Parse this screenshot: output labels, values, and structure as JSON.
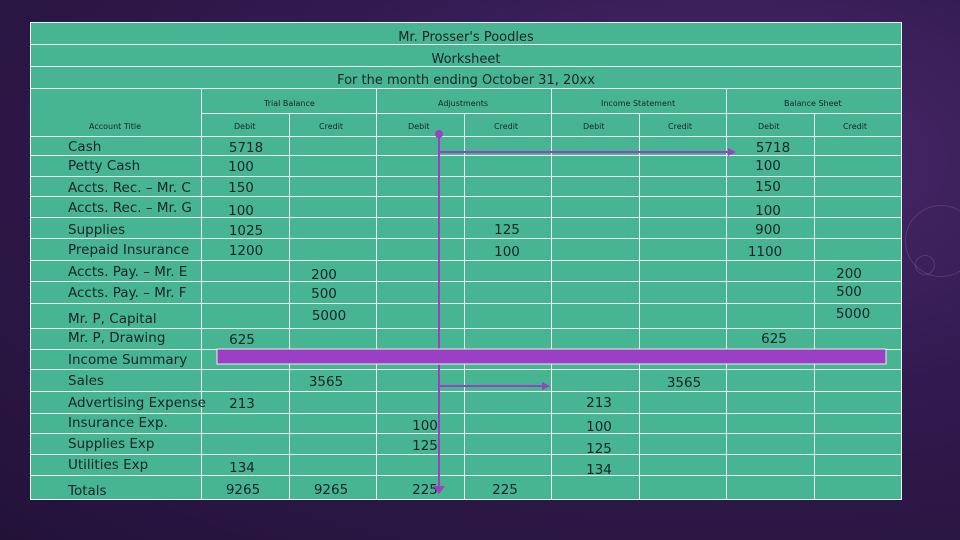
{
  "header": {
    "line1": "Mr. Prosser's Poodles",
    "line2": "Worksheet",
    "line3": "For the month ending October 31, 20xx"
  },
  "groups": {
    "trial_balance": "Trial Balance",
    "adjustments": "Adjustments",
    "income_statement": "Income Statement",
    "balance_sheet": "Balance Sheet"
  },
  "columns": {
    "account_title": "Account Title",
    "tb_debit": "Debit",
    "tb_credit": "Credit",
    "adj_debit": "Debit",
    "adj_credit": "Credit",
    "is_debit": "Debit",
    "is_credit": "Credit",
    "bs_debit": "Debit",
    "bs_credit": "Credit"
  },
  "accounts": [
    "Cash",
    "Petty Cash",
    "Accts. Rec. – Mr. C",
    "Accts. Rec. – Mr. G",
    "Supplies",
    "Prepaid Insurance",
    "Accts. Pay. – Mr. E",
    "Accts. Pay. – Mr. F",
    "Mr. P, Capital",
    "Mr. P, Drawing",
    "Income Summary",
    "Sales",
    "Advertising Expense",
    "Insurance Exp.",
    "Supplies  Exp",
    "Utilities Exp",
    "Totals"
  ],
  "trial_balance_debit": [
    "5718",
    "100",
    "150",
    "100",
    "1025",
    "1200",
    "625",
    "213",
    "134",
    "9265"
  ],
  "trial_balance_credit": [
    "200",
    "500",
    "5000",
    "3565",
    "9265"
  ],
  "adjustments_debit": [
    "100",
    "125",
    "225"
  ],
  "adjustments_credit": [
    "125",
    "100",
    "225"
  ],
  "income_statement_debit": [
    "213",
    "100",
    "125",
    "134"
  ],
  "income_statement_credit": [
    "3565"
  ],
  "balance_sheet_debit": [
    "5718",
    "100",
    "150",
    "100",
    "900",
    "1100",
    "625"
  ],
  "balance_sheet_credit": [
    "200",
    "500",
    "5000"
  ],
  "colors": {
    "sheet": "#48b592",
    "arrows": "#9b3fc4",
    "highlight_bar": "#9b3fc4"
  }
}
